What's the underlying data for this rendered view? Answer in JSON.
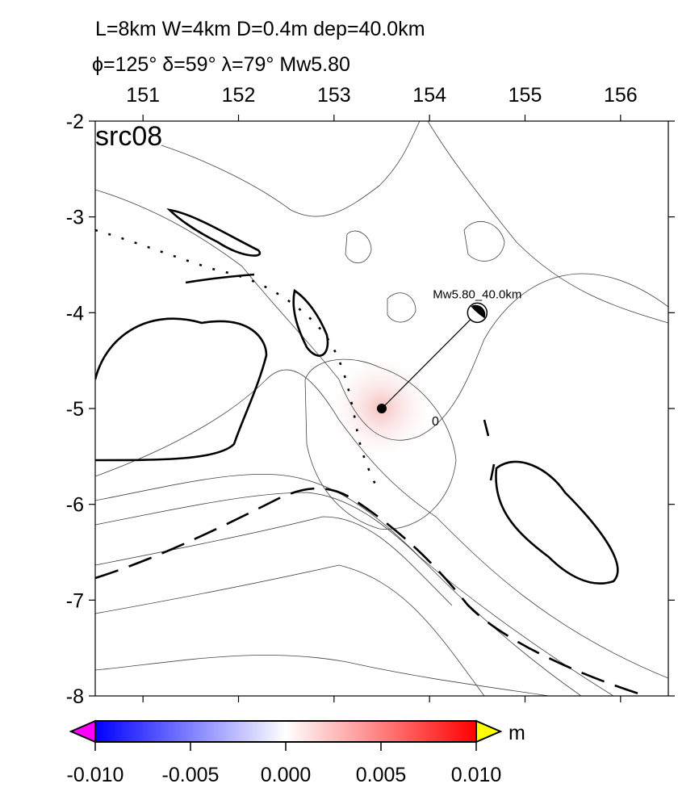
{
  "header": {
    "line1": "L=8km W=4km D=0.4m dep=40.0km",
    "line2": "ϕ=125° δ=59° λ=79° Mw5.80"
  },
  "map": {
    "label": "src08",
    "xlim": [
      150.5,
      156.5
    ],
    "ylim": [
      -8,
      -2
    ],
    "xticks": [
      151,
      152,
      153,
      154,
      155,
      156
    ],
    "yticks": [
      -2,
      -3,
      -4,
      -5,
      -6,
      -7,
      -8
    ],
    "epicenter": {
      "lon": 153.5,
      "lat": -5.0
    },
    "mechanism": {
      "lon": 154.5,
      "lat": -4.0,
      "label": "Mw5.80_40.0km"
    },
    "contour_label": "0"
  },
  "colorbar": {
    "lim": [
      -0.01,
      0.01
    ],
    "ticks": [
      {
        "value": -0.01,
        "label": "-0.010"
      },
      {
        "value": -0.005,
        "label": "-0.005"
      },
      {
        "value": 0,
        "label": "0.000"
      },
      {
        "value": 0.005,
        "label": "0.005"
      },
      {
        "value": 0.01,
        "label": "0.010"
      }
    ],
    "unit": "m"
  }
}
